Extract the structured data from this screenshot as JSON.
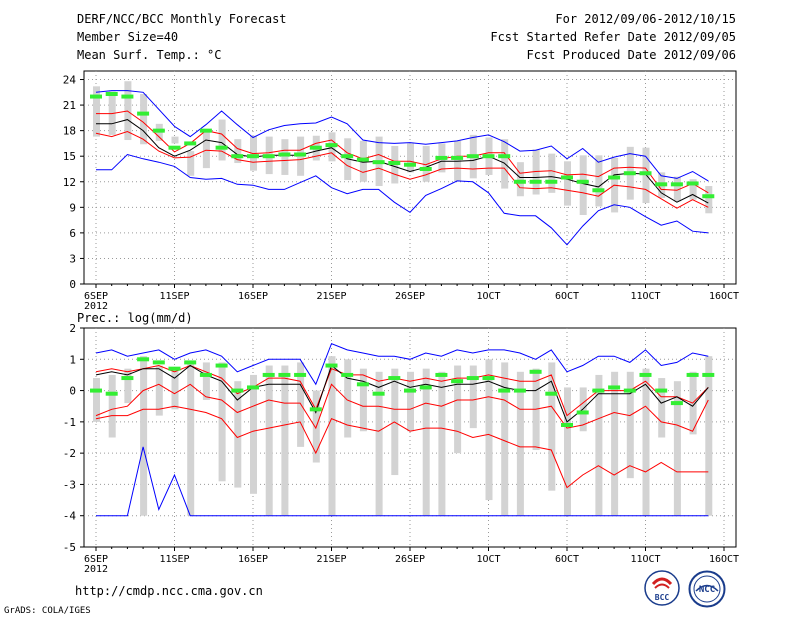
{
  "header": {
    "title": "DERF/NCC/BCC Monthly Forecast",
    "member_size": "Member Size=40",
    "variable": "Mean Surf. Temp.: °C",
    "forecast_for": "For 2012/09/06-2012/10/15",
    "fcst_started": "Fcst Started Refer Date 2012/09/05",
    "fcst_produced": "Fcst Produced Date 2012/09/06"
  },
  "footer": {
    "url": "http://cmdp.ncc.cma.gov.cn",
    "credit": "GrADS: COLA/IGES",
    "logo_bcc": "BCC",
    "logo_ncc": "NCC"
  },
  "colors": {
    "max_min": "#0000ff",
    "percentile": "#ff0000",
    "ensemble_mean": "#000000",
    "observed": "#33ee33",
    "spread_bar": "#d3d3d3",
    "grid": "#9a9a9a"
  },
  "chart_data": [
    {
      "type": "line",
      "title": "Mean Surf. Temp.: °C",
      "ylim": [
        0,
        25
      ],
      "yticks": [
        0,
        3,
        6,
        9,
        12,
        15,
        18,
        21,
        24
      ],
      "xlim": [
        0,
        40
      ],
      "xticks": [
        {
          "label": "6SEP",
          "day": 0,
          "sublabel": "2012"
        },
        {
          "label": "11SEP",
          "day": 5
        },
        {
          "label": "16SEP",
          "day": 10
        },
        {
          "label": "21SEP",
          "day": 15
        },
        {
          "label": "26SEP",
          "day": 20
        },
        {
          "label": "1OCT",
          "day": 25
        },
        {
          "label": "6OCT",
          "day": 30
        },
        {
          "label": "11OCT",
          "day": 35
        },
        {
          "label": "16OCT",
          "day": 40
        }
      ],
      "series": [
        {
          "name": "max",
          "color": "#0000ff",
          "values": [
            22.5,
            22.7,
            22.7,
            22.5,
            20.5,
            18.5,
            17.3,
            18.7,
            20.3,
            18.7,
            17.2,
            18.1,
            18.6,
            18.8,
            18.9,
            19.6,
            18.8,
            16.9,
            16.6,
            16.5,
            16.6,
            16.4,
            16.6,
            16.8,
            17.2,
            17.5,
            16.7,
            15.6,
            15.7,
            16.2,
            14.7,
            15.9,
            14.3,
            14.9,
            15.3,
            15.0,
            12.7,
            12.4,
            13.2,
            12.1
          ]
        },
        {
          "name": "p90",
          "color": "#ff0000",
          "values": [
            20.0,
            20.0,
            20.3,
            19.0,
            17.3,
            15.5,
            16.5,
            18.0,
            17.6,
            15.9,
            15.3,
            15.4,
            15.7,
            15.7,
            16.5,
            16.9,
            15.4,
            14.7,
            15.2,
            14.4,
            14.4,
            14.0,
            14.7,
            15.0,
            15.0,
            15.4,
            15.4,
            13.0,
            13.2,
            13.3,
            12.8,
            12.9,
            12.6,
            13.6,
            13.7,
            13.6,
            11.1,
            11.0,
            11.8,
            10.7
          ]
        },
        {
          "name": "mean",
          "color": "#000000",
          "values": [
            18.8,
            18.8,
            19.3,
            18.0,
            16.0,
            15.0,
            15.7,
            16.9,
            16.6,
            15.2,
            14.9,
            15.1,
            15.1,
            15.1,
            15.6,
            16.0,
            14.7,
            14.3,
            14.4,
            13.8,
            13.2,
            13.7,
            14.4,
            14.4,
            14.5,
            15.0,
            14.2,
            12.5,
            12.5,
            12.6,
            12.3,
            11.8,
            11.4,
            12.8,
            13.0,
            12.9,
            10.7,
            9.6,
            10.5,
            9.5
          ]
        },
        {
          "name": "p10",
          "color": "#ff0000",
          "values": [
            17.7,
            17.3,
            17.9,
            17.0,
            15.6,
            14.8,
            14.9,
            15.7,
            15.6,
            14.6,
            14.3,
            14.4,
            14.5,
            14.6,
            15.0,
            15.4,
            13.9,
            13.1,
            13.6,
            12.9,
            12.3,
            12.8,
            13.5,
            13.6,
            13.5,
            13.6,
            13.6,
            11.3,
            11.2,
            11.3,
            11.0,
            10.7,
            10.3,
            11.6,
            11.4,
            11.1,
            10.0,
            8.9,
            9.9,
            9.0
          ]
        },
        {
          "name": "min",
          "color": "#0000ff",
          "values": [
            13.4,
            13.4,
            15.2,
            14.7,
            14.3,
            13.8,
            12.5,
            12.3,
            12.4,
            11.7,
            11.6,
            11.1,
            11.1,
            11.9,
            12.7,
            11.3,
            10.6,
            11.1,
            11.1,
            9.6,
            8.4,
            10.4,
            11.2,
            12.1,
            12.0,
            10.7,
            8.3,
            8.0,
            8.0,
            6.6,
            4.6,
            6.8,
            8.6,
            9.3,
            9.0,
            7.9,
            6.9,
            7.4,
            6.2,
            6.0
          ]
        },
        {
          "name": "observed",
          "color": "#33ee33",
          "values": [
            22.0,
            22.3,
            22.0,
            20.0,
            18.0,
            16.0,
            16.5,
            18.0,
            16.0,
            15.0,
            15.0,
            15.0,
            15.2,
            15.2,
            16.0,
            16.3,
            15.0,
            14.6,
            14.3,
            14.2,
            14.0,
            13.5,
            14.8,
            14.8,
            15.0,
            15.0,
            15.0,
            12.0,
            12.0,
            12.0,
            12.5,
            12.0,
            11.0,
            12.5,
            13.0,
            13.0,
            11.7,
            11.7,
            11.8,
            10.3
          ]
        }
      ],
      "spread_bars": {
        "low": [
          17.3,
          17.5,
          16.9,
          16.4,
          16.8,
          16.5,
          12.7,
          13.6,
          14.5,
          14.2,
          13.3,
          12.9,
          12.8,
          12.7,
          14.5,
          14.4,
          12.2,
          12.0,
          11.5,
          11.8,
          13.1,
          12.0,
          13.1,
          12.1,
          12.4,
          12.8,
          11.2,
          10.3,
          10.5,
          10.7,
          9.2,
          8.1,
          9.1,
          8.4,
          9.9,
          9.5,
          10.1,
          9.7,
          9.9,
          8.3
        ],
        "high": [
          23.2,
          22.6,
          23.8,
          22.3,
          18.8,
          17.3,
          15.6,
          17.8,
          19.3,
          17.0,
          17.4,
          17.3,
          17.0,
          17.3,
          17.4,
          17.8,
          17.1,
          16.8,
          17.3,
          16.2,
          16.5,
          16.2,
          16.5,
          16.8,
          17.5,
          17.2,
          17.0,
          14.3,
          15.8,
          15.3,
          14.4,
          15.1,
          15.1,
          14.8,
          16.1,
          16.0,
          13.1,
          12.6,
          12.3,
          11.5
        ]
      }
    },
    {
      "type": "line",
      "title": "Prec.: log(mm/d)",
      "ylim": [
        -5,
        2
      ],
      "yticks": [
        -5,
        -4,
        -3,
        -2,
        -1,
        0,
        1,
        2
      ],
      "xlim": [
        0,
        40
      ],
      "xticks": [
        {
          "label": "6SEP",
          "day": 0,
          "sublabel": "2012"
        },
        {
          "label": "11SEP",
          "day": 5
        },
        {
          "label": "16SEP",
          "day": 10
        },
        {
          "label": "21SEP",
          "day": 15
        },
        {
          "label": "26SEP",
          "day": 20
        },
        {
          "label": "1OCT",
          "day": 25
        },
        {
          "label": "6OCT",
          "day": 30
        },
        {
          "label": "11OCT",
          "day": 35
        },
        {
          "label": "16OCT",
          "day": 40
        }
      ],
      "series": [
        {
          "name": "max",
          "color": "#0000ff",
          "values": [
            1.2,
            1.3,
            1.1,
            1.2,
            1.3,
            1.0,
            1.2,
            1.3,
            1.1,
            0.6,
            0.8,
            1.0,
            1.0,
            1.0,
            0.2,
            1.5,
            1.3,
            1.2,
            1.1,
            1.1,
            1.0,
            1.2,
            1.1,
            1.3,
            1.2,
            1.3,
            1.3,
            1.2,
            1.0,
            1.3,
            0.6,
            0.8,
            1.1,
            1.1,
            0.9,
            1.3,
            0.8,
            0.9,
            1.2,
            1.1
          ]
        },
        {
          "name": "p90",
          "color": "#ff0000",
          "values": [
            0.6,
            0.7,
            0.6,
            0.7,
            0.8,
            0.6,
            0.8,
            0.6,
            0.4,
            -0.1,
            0.1,
            0.4,
            0.4,
            0.3,
            -0.6,
            0.7,
            0.5,
            0.5,
            0.3,
            0.4,
            0.3,
            0.4,
            0.3,
            0.4,
            0.4,
            0.5,
            0.4,
            0.3,
            0.3,
            0.5,
            -0.8,
            -0.4,
            0.0,
            0.0,
            0.0,
            0.3,
            -0.2,
            -0.2,
            -0.4,
            0.1
          ]
        },
        {
          "name": "mean",
          "color": "#000000",
          "values": [
            0.5,
            0.6,
            0.5,
            0.7,
            0.7,
            0.4,
            0.8,
            0.5,
            0.3,
            -0.3,
            0.1,
            0.2,
            0.2,
            0.2,
            -0.7,
            0.8,
            0.4,
            0.3,
            0.1,
            0.3,
            0.1,
            0.2,
            0.1,
            0.2,
            0.2,
            0.3,
            0.1,
            0.0,
            0.0,
            0.3,
            -1.0,
            -0.6,
            -0.1,
            -0.1,
            -0.1,
            0.2,
            -0.4,
            -0.2,
            -0.5,
            0.1
          ]
        },
        {
          "name": "p10",
          "color": "#ff0000",
          "values": [
            -0.8,
            -0.6,
            -0.5,
            0.0,
            0.2,
            -0.1,
            0.2,
            -0.2,
            -0.3,
            -0.7,
            -0.5,
            -0.3,
            -0.4,
            -0.4,
            -1.2,
            0.2,
            -0.3,
            -0.5,
            -0.5,
            -0.6,
            -0.6,
            -0.4,
            -0.5,
            -0.3,
            -0.3,
            -0.2,
            -0.3,
            -0.6,
            -0.6,
            -0.5,
            -1.2,
            -1.1,
            -0.9,
            -0.7,
            -0.8,
            -0.5,
            -1.0,
            -1.1,
            -1.3,
            -0.3
          ]
        },
        {
          "name": "p_low",
          "color": "#ff0000",
          "values": [
            -0.9,
            -0.8,
            -0.8,
            -0.6,
            -0.6,
            -0.5,
            -0.6,
            -0.7,
            -0.9,
            -1.5,
            -1.3,
            -1.2,
            -1.1,
            -1.0,
            -2.0,
            -0.9,
            -1.1,
            -1.2,
            -1.3,
            -1.0,
            -1.3,
            -1.2,
            -1.2,
            -1.3,
            -1.5,
            -1.4,
            -1.6,
            -1.8,
            -1.8,
            -1.9,
            -3.1,
            -2.7,
            -2.4,
            -2.7,
            -2.4,
            -2.6,
            -2.3,
            -2.6,
            -2.6,
            -2.6
          ]
        },
        {
          "name": "min",
          "color": "#0000ff",
          "values": [
            -4.0,
            -4.0,
            -4.0,
            -1.8,
            -3.8,
            -2.7,
            -4.0,
            -4.0,
            -4.0,
            -4.0,
            -4.0,
            -4.0,
            -4.0,
            -4.0,
            -4.0,
            -4.0,
            -4.0,
            -4.0,
            -4.0,
            -4.0,
            -4.0,
            -4.0,
            -4.0,
            -4.0,
            -4.0,
            -4.0,
            -4.0,
            -4.0,
            -4.0,
            -4.0,
            -4.0,
            -4.0,
            -4.0,
            -4.0,
            -4.0,
            -4.0,
            -4.0,
            -4.0,
            -4.0,
            -4.0
          ]
        },
        {
          "name": "observed",
          "color": "#33ee33",
          "values": [
            0.0,
            -0.1,
            0.4,
            1.0,
            0.9,
            0.7,
            0.9,
            0.5,
            0.8,
            0.0,
            0.1,
            0.5,
            0.5,
            0.5,
            -0.6,
            0.8,
            0.5,
            0.2,
            -0.1,
            0.4,
            0.0,
            0.1,
            0.5,
            0.3,
            0.4,
            0.4,
            0.0,
            0.0,
            0.6,
            -0.1,
            -1.1,
            -0.7,
            0.0,
            0.1,
            0.0,
            0.5,
            0.0,
            -0.4,
            0.5,
            0.5
          ]
        }
      ],
      "spread_bars": {
        "low": [
          -1.0,
          -1.5,
          -0.4,
          -4.0,
          -0.8,
          -0.6,
          -4.0,
          -0.3,
          -2.9,
          -3.1,
          -3.3,
          -4.0,
          -4.0,
          -1.8,
          -2.3,
          -4.0,
          -1.5,
          -1.3,
          -4.0,
          -2.7,
          -1.3,
          -4.0,
          -4.0,
          -2.0,
          -1.2,
          -3.5,
          -4.0,
          -4.0,
          -1.9,
          -3.2,
          -4.0,
          -1.3,
          -4.0,
          -4.0,
          -2.8,
          -4.0,
          -1.5,
          -4.0,
          -1.4,
          -4.0
        ],
        "high": [
          0.4,
          0.5,
          0.7,
          1.1,
          0.8,
          0.7,
          0.9,
          0.9,
          0.9,
          0.3,
          0.5,
          0.8,
          0.8,
          0.9,
          0.0,
          1.1,
          1.0,
          0.7,
          0.6,
          0.7,
          0.6,
          0.7,
          0.6,
          0.8,
          0.8,
          1.0,
          0.9,
          0.6,
          0.7,
          0.9,
          0.1,
          0.1,
          0.5,
          0.6,
          0.6,
          0.7,
          0.4,
          0.3,
          0.6,
          1.1
        ]
      }
    }
  ]
}
